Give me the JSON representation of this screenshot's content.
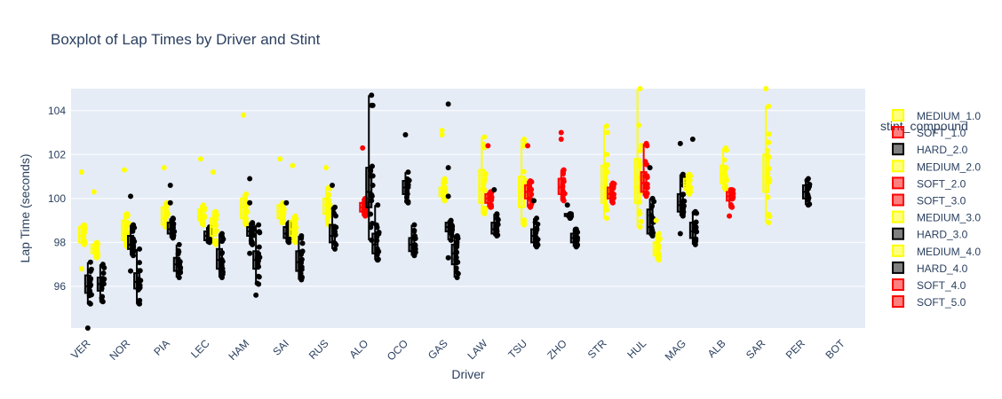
{
  "chart_data": {
    "type": "box",
    "title": "Boxplot of Lap Times by Driver and Stint",
    "xlabel": "Driver",
    "ylabel": "Lap Time (seconds)",
    "ylim": [
      94.1,
      105.0
    ],
    "yticks": [
      96,
      98,
      100,
      102,
      104
    ],
    "grid": true,
    "legend_title": "stint_compound",
    "legend_position": "right",
    "categories": [
      "VER",
      "NOR",
      "PIA",
      "LEC",
      "HAM",
      "SAI",
      "RUS",
      "ALO",
      "OCO",
      "GAS",
      "LAW",
      "TSU",
      "ZHO",
      "STR",
      "HUL",
      "MAG",
      "ALB",
      "SAR",
      "PER",
      "BOT"
    ],
    "colors": {
      "MEDIUM": "#ffff00",
      "SOFT": "#ff0000",
      "HARD": "#000000"
    },
    "series": [
      {
        "name": "MEDIUM_1.0",
        "compound": "MEDIUM",
        "boxes": [
          {
            "x": "VER",
            "min": 97.9,
            "q1": 98.0,
            "median": 98.3,
            "q3": 98.7,
            "max": 98.8,
            "outliers": [
              101.2,
              96.8
            ]
          },
          {
            "x": "NOR",
            "min": 97.8,
            "q1": 98.1,
            "median": 98.4,
            "q3": 99.0,
            "max": 99.3,
            "outliers": [
              101.3
            ]
          },
          {
            "x": "PIA",
            "min": 98.7,
            "q1": 98.8,
            "median": 99.1,
            "q3": 99.6,
            "max": 99.8,
            "outliers": [
              101.4
            ]
          },
          {
            "x": "LEC",
            "min": 98.8,
            "q1": 99.0,
            "median": 99.3,
            "q3": 99.5,
            "max": 99.7,
            "outliers": [
              101.8
            ]
          },
          {
            "x": "HAM",
            "min": 98.8,
            "q1": 99.1,
            "median": 99.6,
            "q3": 100.0,
            "max": 100.2,
            "outliers": [
              103.8
            ]
          },
          {
            "x": "SAI",
            "min": 98.9,
            "q1": 99.1,
            "median": 99.4,
            "q3": 99.7,
            "max": 99.8,
            "outliers": [
              101.8
            ]
          },
          {
            "x": "RUS",
            "min": 98.8,
            "q1": 99.3,
            "median": 99.7,
            "q3": 100.0,
            "max": 100.5,
            "outliers": [
              101.4
            ]
          },
          {
            "x": "GAS",
            "min": 99.9,
            "q1": 100.1,
            "median": 100.3,
            "q3": 100.5,
            "max": 100.9,
            "outliers": [
              103.1,
              102.9
            ]
          },
          {
            "x": "LAW",
            "min": 99.3,
            "q1": 99.8,
            "median": 100.4,
            "q3": 101.3,
            "max": 102.8,
            "outliers": []
          },
          {
            "x": "TSU",
            "min": 98.8,
            "q1": 99.6,
            "median": 100.3,
            "q3": 101.0,
            "max": 102.7,
            "outliers": []
          },
          {
            "x": "STR",
            "min": 99.1,
            "q1": 99.8,
            "median": 100.5,
            "q3": 101.5,
            "max": 103.3,
            "outliers": []
          },
          {
            "x": "HUL",
            "min": 98.7,
            "q1": 99.8,
            "median": 100.5,
            "q3": 101.8,
            "max": 105.0,
            "outliers": []
          },
          {
            "x": "ALB",
            "min": 100.4,
            "q1": 100.7,
            "median": 101.1,
            "q3": 101.5,
            "max": 102.3,
            "outliers": []
          },
          {
            "x": "SAR",
            "min": 98.9,
            "q1": 100.3,
            "median": 101.0,
            "q3": 102.0,
            "max": 104.2,
            "outliers": [
              105.0
            ]
          }
        ]
      },
      {
        "name": "SOFT_1.0",
        "compound": "SOFT",
        "boxes": [
          {
            "x": "ALO",
            "min": 99.2,
            "q1": 99.4,
            "median": 99.6,
            "q3": 99.8,
            "max": 100.0,
            "outliers": [
              102.3
            ]
          },
          {
            "x": "LAW",
            "min": 99.6,
            "q1": 99.8,
            "median": 100.0,
            "q3": 100.2,
            "max": 100.3,
            "outliers": [
              102.4
            ]
          },
          {
            "x": "TSU",
            "min": 99.6,
            "q1": 100.0,
            "median": 100.3,
            "q3": 100.6,
            "max": 100.8,
            "outliers": [
              102.4
            ]
          },
          {
            "x": "ZHO",
            "min": 99.9,
            "q1": 100.2,
            "median": 100.5,
            "q3": 100.9,
            "max": 101.3,
            "outliers": [
              103.0,
              102.7
            ]
          },
          {
            "x": "STR",
            "min": 99.8,
            "q1": 100.0,
            "median": 100.2,
            "q3": 100.5,
            "max": 100.7,
            "outliers": []
          },
          {
            "x": "HUL",
            "min": 100.1,
            "q1": 100.3,
            "median": 100.7,
            "q3": 101.2,
            "max": 102.5,
            "outliers": []
          },
          {
            "x": "ALB",
            "min": 99.6,
            "q1": 99.9,
            "median": 100.1,
            "q3": 100.3,
            "max": 100.4,
            "outliers": [
              99.2
            ]
          }
        ]
      },
      {
        "name": "HARD_2.0",
        "compound": "HARD",
        "boxes": [
          {
            "x": "VER",
            "min": 95.2,
            "q1": 95.7,
            "median": 96.0,
            "q3": 96.5,
            "max": 97.1,
            "outliers": [
              94.1
            ]
          },
          {
            "x": "NOR",
            "min": 97.4,
            "q1": 97.7,
            "median": 97.9,
            "q3": 98.3,
            "max": 98.8,
            "outliers": [
              100.1,
              96.7
            ]
          },
          {
            "x": "PIA",
            "min": 98.2,
            "q1": 98.4,
            "median": 98.6,
            "q3": 98.9,
            "max": 99.1,
            "outliers": [
              100.6,
              99.8
            ]
          },
          {
            "x": "LEC",
            "min": 98.0,
            "q1": 98.1,
            "median": 98.3,
            "q3": 98.5,
            "max": 98.7,
            "outliers": []
          },
          {
            "x": "HAM",
            "min": 97.9,
            "q1": 98.3,
            "median": 98.5,
            "q3": 98.7,
            "max": 98.9,
            "outliers": [
              100.9,
              99.8,
              97.5
            ]
          },
          {
            "x": "SAI",
            "min": 98.0,
            "q1": 98.2,
            "median": 98.4,
            "q3": 98.7,
            "max": 98.9,
            "outliers": [
              99.8
            ]
          },
          {
            "x": "RUS",
            "min": 97.7,
            "q1": 98.0,
            "median": 98.3,
            "q3": 98.8,
            "max": 99.6,
            "outliers": [
              100.6
            ]
          },
          {
            "x": "ALO",
            "min": 98.1,
            "q1": 99.6,
            "median": 100.3,
            "q3": 101.4,
            "max": 104.7,
            "outliers": []
          },
          {
            "x": "OCO",
            "min": 99.8,
            "q1": 100.2,
            "median": 100.5,
            "q3": 100.8,
            "max": 101.2,
            "outliers": [
              102.9
            ]
          },
          {
            "x": "GAS",
            "min": 98.1,
            "q1": 98.5,
            "median": 98.7,
            "q3": 98.9,
            "max": 99.0,
            "outliers": [
              101.4,
              100.1,
              97.3,
              104.3
            ]
          },
          {
            "x": "LAW",
            "min": 98.3,
            "q1": 98.4,
            "median": 98.6,
            "q3": 98.9,
            "max": 99.3,
            "outliers": [
              100.4
            ]
          },
          {
            "x": "ZHO",
            "min": 99.1,
            "q1": 99.2,
            "median": 99.2,
            "q3": 99.3,
            "max": 99.3,
            "outliers": [
              99.7
            ]
          },
          {
            "x": "HUL",
            "min": 98.3,
            "q1": 98.4,
            "median": 98.7,
            "q3": 99.5,
            "max": 100.0,
            "outliers": [
              101.4
            ]
          },
          {
            "x": "MAG",
            "min": 99.2,
            "q1": 99.4,
            "median": 99.7,
            "q3": 100.2,
            "max": 101.1,
            "outliers": [
              102.5,
              98.4
            ]
          },
          {
            "x": "PER",
            "min": 99.7,
            "q1": 100.0,
            "median": 100.3,
            "q3": 100.6,
            "max": 100.9,
            "outliers": []
          }
        ]
      },
      {
        "name": "MEDIUM_2.0",
        "compound": "MEDIUM",
        "boxes": [
          {
            "x": "VER",
            "min": 97.3,
            "q1": 97.5,
            "median": 97.7,
            "q3": 97.9,
            "max": 98.0,
            "outliers": [
              100.3
            ]
          },
          {
            "x": "LEC",
            "min": 97.9,
            "q1": 98.3,
            "median": 98.7,
            "q3": 99.1,
            "max": 99.4,
            "outliers": [
              101.2
            ]
          },
          {
            "x": "SAI",
            "min": 98.0,
            "q1": 98.3,
            "median": 98.6,
            "q3": 99.0,
            "max": 99.2,
            "outliers": [
              101.5
            ]
          },
          {
            "x": "HUL",
            "min": 97.2,
            "q1": 97.4,
            "median": 97.6,
            "q3": 98.0,
            "max": 98.4,
            "outliers": [
              99.0
            ]
          },
          {
            "x": "MAG",
            "min": 100.2,
            "q1": 100.4,
            "median": 100.6,
            "q3": 100.9,
            "max": 101.1,
            "outliers": []
          }
        ]
      },
      {
        "name": "SOFT_2.0",
        "compound": "SOFT",
        "boxes": []
      },
      {
        "name": "SOFT_3.0",
        "compound": "SOFT",
        "boxes": []
      },
      {
        "name": "MEDIUM_3.0",
        "compound": "MEDIUM",
        "boxes": []
      },
      {
        "name": "HARD_3.0",
        "compound": "HARD",
        "boxes": [
          {
            "x": "VER",
            "min": 95.3,
            "q1": 95.8,
            "median": 96.1,
            "q3": 96.4,
            "max": 97.0,
            "outliers": []
          },
          {
            "x": "NOR",
            "min": 95.2,
            "q1": 95.9,
            "median": 96.2,
            "q3": 96.6,
            "max": 97.7,
            "outliers": []
          },
          {
            "x": "PIA",
            "min": 96.4,
            "q1": 96.7,
            "median": 97.0,
            "q3": 97.3,
            "max": 97.9,
            "outliers": []
          },
          {
            "x": "LEC",
            "min": 96.4,
            "q1": 96.8,
            "median": 97.2,
            "q3": 97.7,
            "max": 98.4,
            "outliers": []
          },
          {
            "x": "HAM",
            "min": 96.1,
            "q1": 96.8,
            "median": 97.2,
            "q3": 97.6,
            "max": 98.8,
            "outliers": [
              95.6
            ]
          },
          {
            "x": "SAI",
            "min": 96.3,
            "q1": 96.7,
            "median": 97.1,
            "q3": 97.6,
            "max": 98.3,
            "outliers": []
          },
          {
            "x": "ALO",
            "min": 97.2,
            "q1": 97.5,
            "median": 97.9,
            "q3": 98.4,
            "max": 99.7,
            "outliers": []
          },
          {
            "x": "OCO",
            "min": 97.4,
            "q1": 97.6,
            "median": 97.9,
            "q3": 98.2,
            "max": 98.8,
            "outliers": []
          },
          {
            "x": "GAS",
            "min": 96.4,
            "q1": 97.0,
            "median": 97.5,
            "q3": 97.9,
            "max": 98.3,
            "outliers": []
          },
          {
            "x": "TSU",
            "min": 97.8,
            "q1": 98.0,
            "median": 98.3,
            "q3": 98.6,
            "max": 99.1,
            "outliers": [
              99.9
            ]
          },
          {
            "x": "ZHO",
            "min": 97.8,
            "q1": 98.0,
            "median": 98.2,
            "q3": 98.4,
            "max": 98.6,
            "outliers": []
          },
          {
            "x": "MAG",
            "min": 97.9,
            "q1": 98.2,
            "median": 98.5,
            "q3": 98.9,
            "max": 99.4,
            "outliers": [
              102.7
            ]
          }
        ]
      },
      {
        "name": "MEDIUM_4.0",
        "compound": "MEDIUM",
        "boxes": []
      },
      {
        "name": "HARD_4.0",
        "compound": "HARD",
        "boxes": []
      },
      {
        "name": "SOFT_4.0",
        "compound": "SOFT",
        "boxes": []
      },
      {
        "name": "SOFT_5.0",
        "compound": "SOFT",
        "boxes": []
      }
    ]
  }
}
